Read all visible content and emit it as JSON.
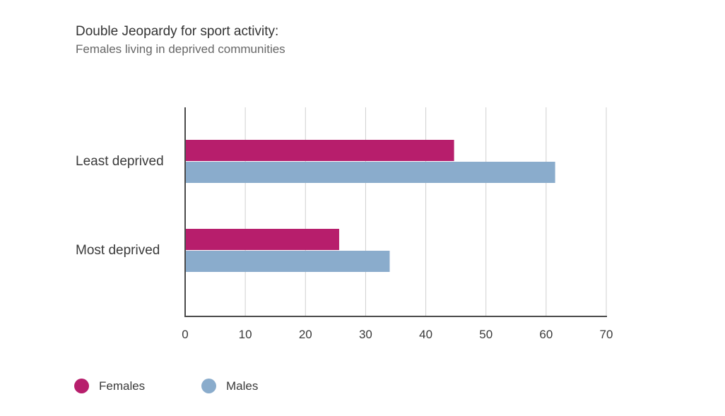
{
  "colors": {
    "females": "#b71e6c",
    "males": "#8aaccc",
    "grid": "#d0d0d0",
    "axis": "#4a4a4a",
    "text": "#3a3a3a"
  },
  "chart_data": {
    "type": "bar",
    "orientation": "horizontal",
    "title": "Double Jeopardy for sport activity:",
    "subtitle": "Females living in deprived communities",
    "xlabel": "",
    "ylabel": "",
    "categories": [
      "Least deprived",
      "Most deprived"
    ],
    "series": [
      {
        "name": "Females",
        "values": [
          44.7,
          25.6
        ],
        "color": "#b71e6c"
      },
      {
        "name": "Males",
        "values": [
          61.5,
          34.0
        ],
        "color": "#8aaccc"
      }
    ],
    "xlim": [
      0,
      70
    ],
    "xticks": [
      "0",
      "10",
      "20",
      "30",
      "40",
      "50",
      "60",
      "70"
    ],
    "grid": true,
    "legend": "bottom-left"
  }
}
